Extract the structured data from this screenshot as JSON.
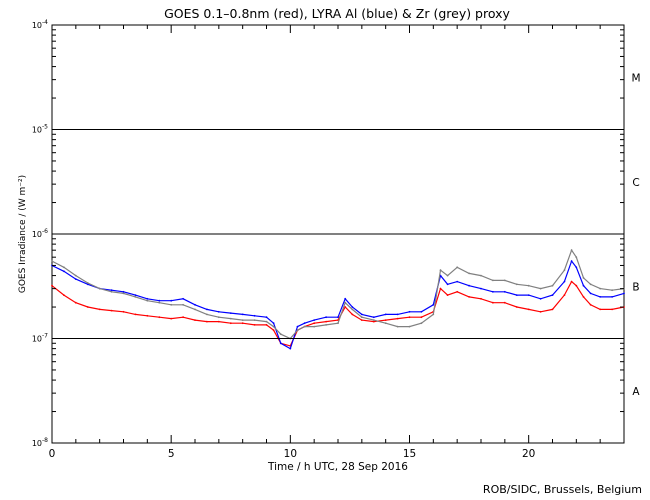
{
  "chart_data": {
    "type": "line",
    "title": "GOES 0.1–0.8nm (red), LYRA Al (blue) & Zr (grey) proxy",
    "xlabel": "Time / h UTC, 28 Sep 2016",
    "ylabel": "GOES Irradiance / (W m⁻²)",
    "xlim": [
      0,
      24
    ],
    "ylim": [
      1e-08,
      0.0001
    ],
    "y_scale": "log",
    "x_ticks": [
      0,
      5,
      10,
      15,
      20
    ],
    "x_tick_labels": [
      "0",
      "5",
      "10",
      "15",
      "20"
    ],
    "y_tick_labels": [
      {
        "base": "10",
        "exp": "-8"
      },
      {
        "base": "10",
        "exp": "-7"
      },
      {
        "base": "10",
        "exp": "-6"
      },
      {
        "base": "10",
        "exp": "-5"
      },
      {
        "base": "10",
        "exp": "-4"
      }
    ],
    "flare_classes": [
      "A",
      "B",
      "C",
      "M"
    ],
    "reference_lines_y": [
      1e-07,
      1e-06,
      1e-05
    ],
    "series": [
      {
        "color": "#ff0000",
        "x": [
          0,
          0.5,
          1,
          1.5,
          2,
          2.5,
          3,
          3.5,
          4,
          4.5,
          5,
          5.5,
          6,
          6.5,
          7,
          7.5,
          8,
          8.5,
          9,
          9.3,
          9.6,
          10,
          10.3,
          10.6,
          11,
          11.5,
          12,
          12.3,
          12.6,
          13,
          13.5,
          14,
          14.5,
          15,
          15.5,
          16,
          16.3,
          16.6,
          17,
          17.5,
          18,
          18.5,
          19,
          19.5,
          20,
          20.5,
          21,
          21.5,
          21.8,
          22,
          22.3,
          22.6,
          23,
          23.5,
          24
        ],
        "y": [
          3.2e-07,
          2.6e-07,
          2.2e-07,
          2e-07,
          1.9e-07,
          1.85e-07,
          1.8e-07,
          1.7e-07,
          1.65e-07,
          1.6e-07,
          1.55e-07,
          1.6e-07,
          1.5e-07,
          1.45e-07,
          1.45e-07,
          1.4e-07,
          1.4e-07,
          1.35e-07,
          1.35e-07,
          1.2e-07,
          9e-08,
          8.5e-08,
          1.2e-07,
          1.3e-07,
          1.4e-07,
          1.45e-07,
          1.5e-07,
          2e-07,
          1.7e-07,
          1.5e-07,
          1.45e-07,
          1.5e-07,
          1.55e-07,
          1.6e-07,
          1.6e-07,
          1.8e-07,
          3e-07,
          2.6e-07,
          2.8e-07,
          2.5e-07,
          2.4e-07,
          2.2e-07,
          2.2e-07,
          2e-07,
          1.9e-07,
          1.8e-07,
          1.9e-07,
          2.6e-07,
          3.5e-07,
          3.2e-07,
          2.5e-07,
          2.1e-07,
          1.9e-07,
          1.9e-07,
          2e-07
        ]
      },
      {
        "color": "#0000ff",
        "x": [
          0,
          0.5,
          1,
          1.5,
          2,
          2.5,
          3,
          3.5,
          4,
          4.5,
          5,
          5.5,
          6,
          6.5,
          7,
          7.5,
          8,
          8.5,
          9,
          9.3,
          9.6,
          10,
          10.3,
          10.6,
          11,
          11.5,
          12,
          12.3,
          12.6,
          13,
          13.5,
          14,
          14.5,
          15,
          15.5,
          16,
          16.3,
          16.6,
          17,
          17.5,
          18,
          18.5,
          19,
          19.5,
          20,
          20.5,
          21,
          21.5,
          21.8,
          22,
          22.3,
          22.6,
          23,
          23.5,
          24
        ],
        "y": [
          5e-07,
          4.4e-07,
          3.7e-07,
          3.3e-07,
          3e-07,
          2.9e-07,
          2.8e-07,
          2.6e-07,
          2.4e-07,
          2.3e-07,
          2.3e-07,
          2.4e-07,
          2.1e-07,
          1.9e-07,
          1.8e-07,
          1.75e-07,
          1.7e-07,
          1.65e-07,
          1.6e-07,
          1.4e-07,
          9e-08,
          8e-08,
          1.3e-07,
          1.4e-07,
          1.5e-07,
          1.6e-07,
          1.6e-07,
          2.4e-07,
          2e-07,
          1.7e-07,
          1.6e-07,
          1.7e-07,
          1.7e-07,
          1.8e-07,
          1.8e-07,
          2.1e-07,
          4e-07,
          3.3e-07,
          3.5e-07,
          3.2e-07,
          3e-07,
          2.8e-07,
          2.8e-07,
          2.6e-07,
          2.6e-07,
          2.4e-07,
          2.6e-07,
          3.5e-07,
          5.5e-07,
          4.8e-07,
          3.2e-07,
          2.7e-07,
          2.5e-07,
          2.5e-07,
          2.7e-07
        ]
      },
      {
        "color": "#808080",
        "x": [
          0,
          0.5,
          1,
          1.5,
          2,
          2.5,
          3,
          3.5,
          4,
          4.5,
          5,
          5.5,
          6,
          6.5,
          7,
          7.5,
          8,
          8.5,
          9,
          9.3,
          9.6,
          10,
          10.3,
          10.6,
          11,
          11.5,
          12,
          12.3,
          12.6,
          13,
          13.5,
          14,
          14.5,
          15,
          15.5,
          16,
          16.3,
          16.6,
          17,
          17.5,
          18,
          18.5,
          19,
          19.5,
          20,
          20.5,
          21,
          21.5,
          21.8,
          22,
          22.3,
          22.6,
          23,
          23.5,
          24
        ],
        "y": [
          5.5e-07,
          4.8e-07,
          4e-07,
          3.4e-07,
          3e-07,
          2.8e-07,
          2.7e-07,
          2.5e-07,
          2.3e-07,
          2.2e-07,
          2.1e-07,
          2.1e-07,
          1.9e-07,
          1.7e-07,
          1.6e-07,
          1.55e-07,
          1.5e-07,
          1.5e-07,
          1.45e-07,
          1.3e-07,
          1.1e-07,
          1e-07,
          1.2e-07,
          1.3e-07,
          1.3e-07,
          1.35e-07,
          1.4e-07,
          2.2e-07,
          1.9e-07,
          1.6e-07,
          1.5e-07,
          1.4e-07,
          1.3e-07,
          1.3e-07,
          1.4e-07,
          1.7e-07,
          4.5e-07,
          4e-07,
          4.8e-07,
          4.2e-07,
          4e-07,
          3.6e-07,
          3.6e-07,
          3.3e-07,
          3.2e-07,
          3e-07,
          3.2e-07,
          4.5e-07,
          7e-07,
          6e-07,
          3.8e-07,
          3.3e-07,
          3e-07,
          2.9e-07,
          3e-07
        ]
      }
    ]
  },
  "footer": "ROB/SIDC, Brussels, Belgium"
}
